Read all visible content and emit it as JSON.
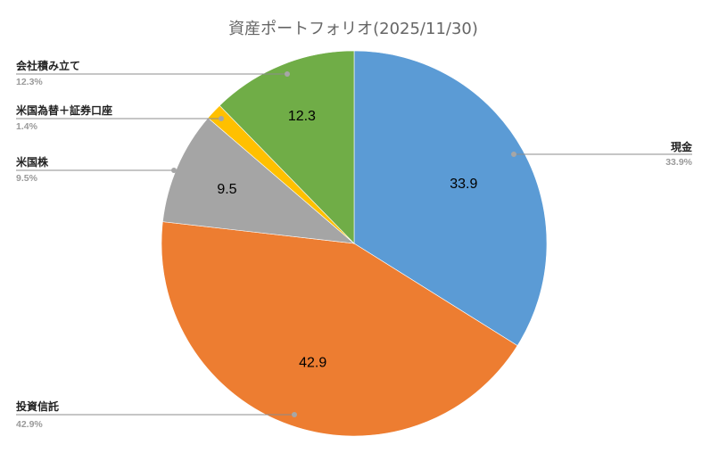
{
  "chart_data": {
    "type": "pie",
    "title": "資産ポートフォリオ(2025/11/30)",
    "start_angle_deg": 0,
    "direction": "clockwise",
    "slices": [
      {
        "name": "現金",
        "value": 33.9,
        "label": "33.9",
        "percent_label": "33.9%",
        "color": "#5B9BD5"
      },
      {
        "name": "投資信託",
        "value": 42.9,
        "label": "42.9",
        "percent_label": "42.9%",
        "color": "#ED7D31"
      },
      {
        "name": "米国株",
        "value": 9.5,
        "label": "9.5",
        "percent_label": "9.5%",
        "color": "#A5A5A5"
      },
      {
        "name": "米国為替＋証券口座",
        "value": 1.4,
        "label": "",
        "percent_label": "1.4%",
        "color": "#FFC000"
      },
      {
        "name": "会社積み立て",
        "value": 12.3,
        "label": "12.3",
        "percent_label": "12.3%",
        "color": "#70AD47"
      }
    ]
  }
}
